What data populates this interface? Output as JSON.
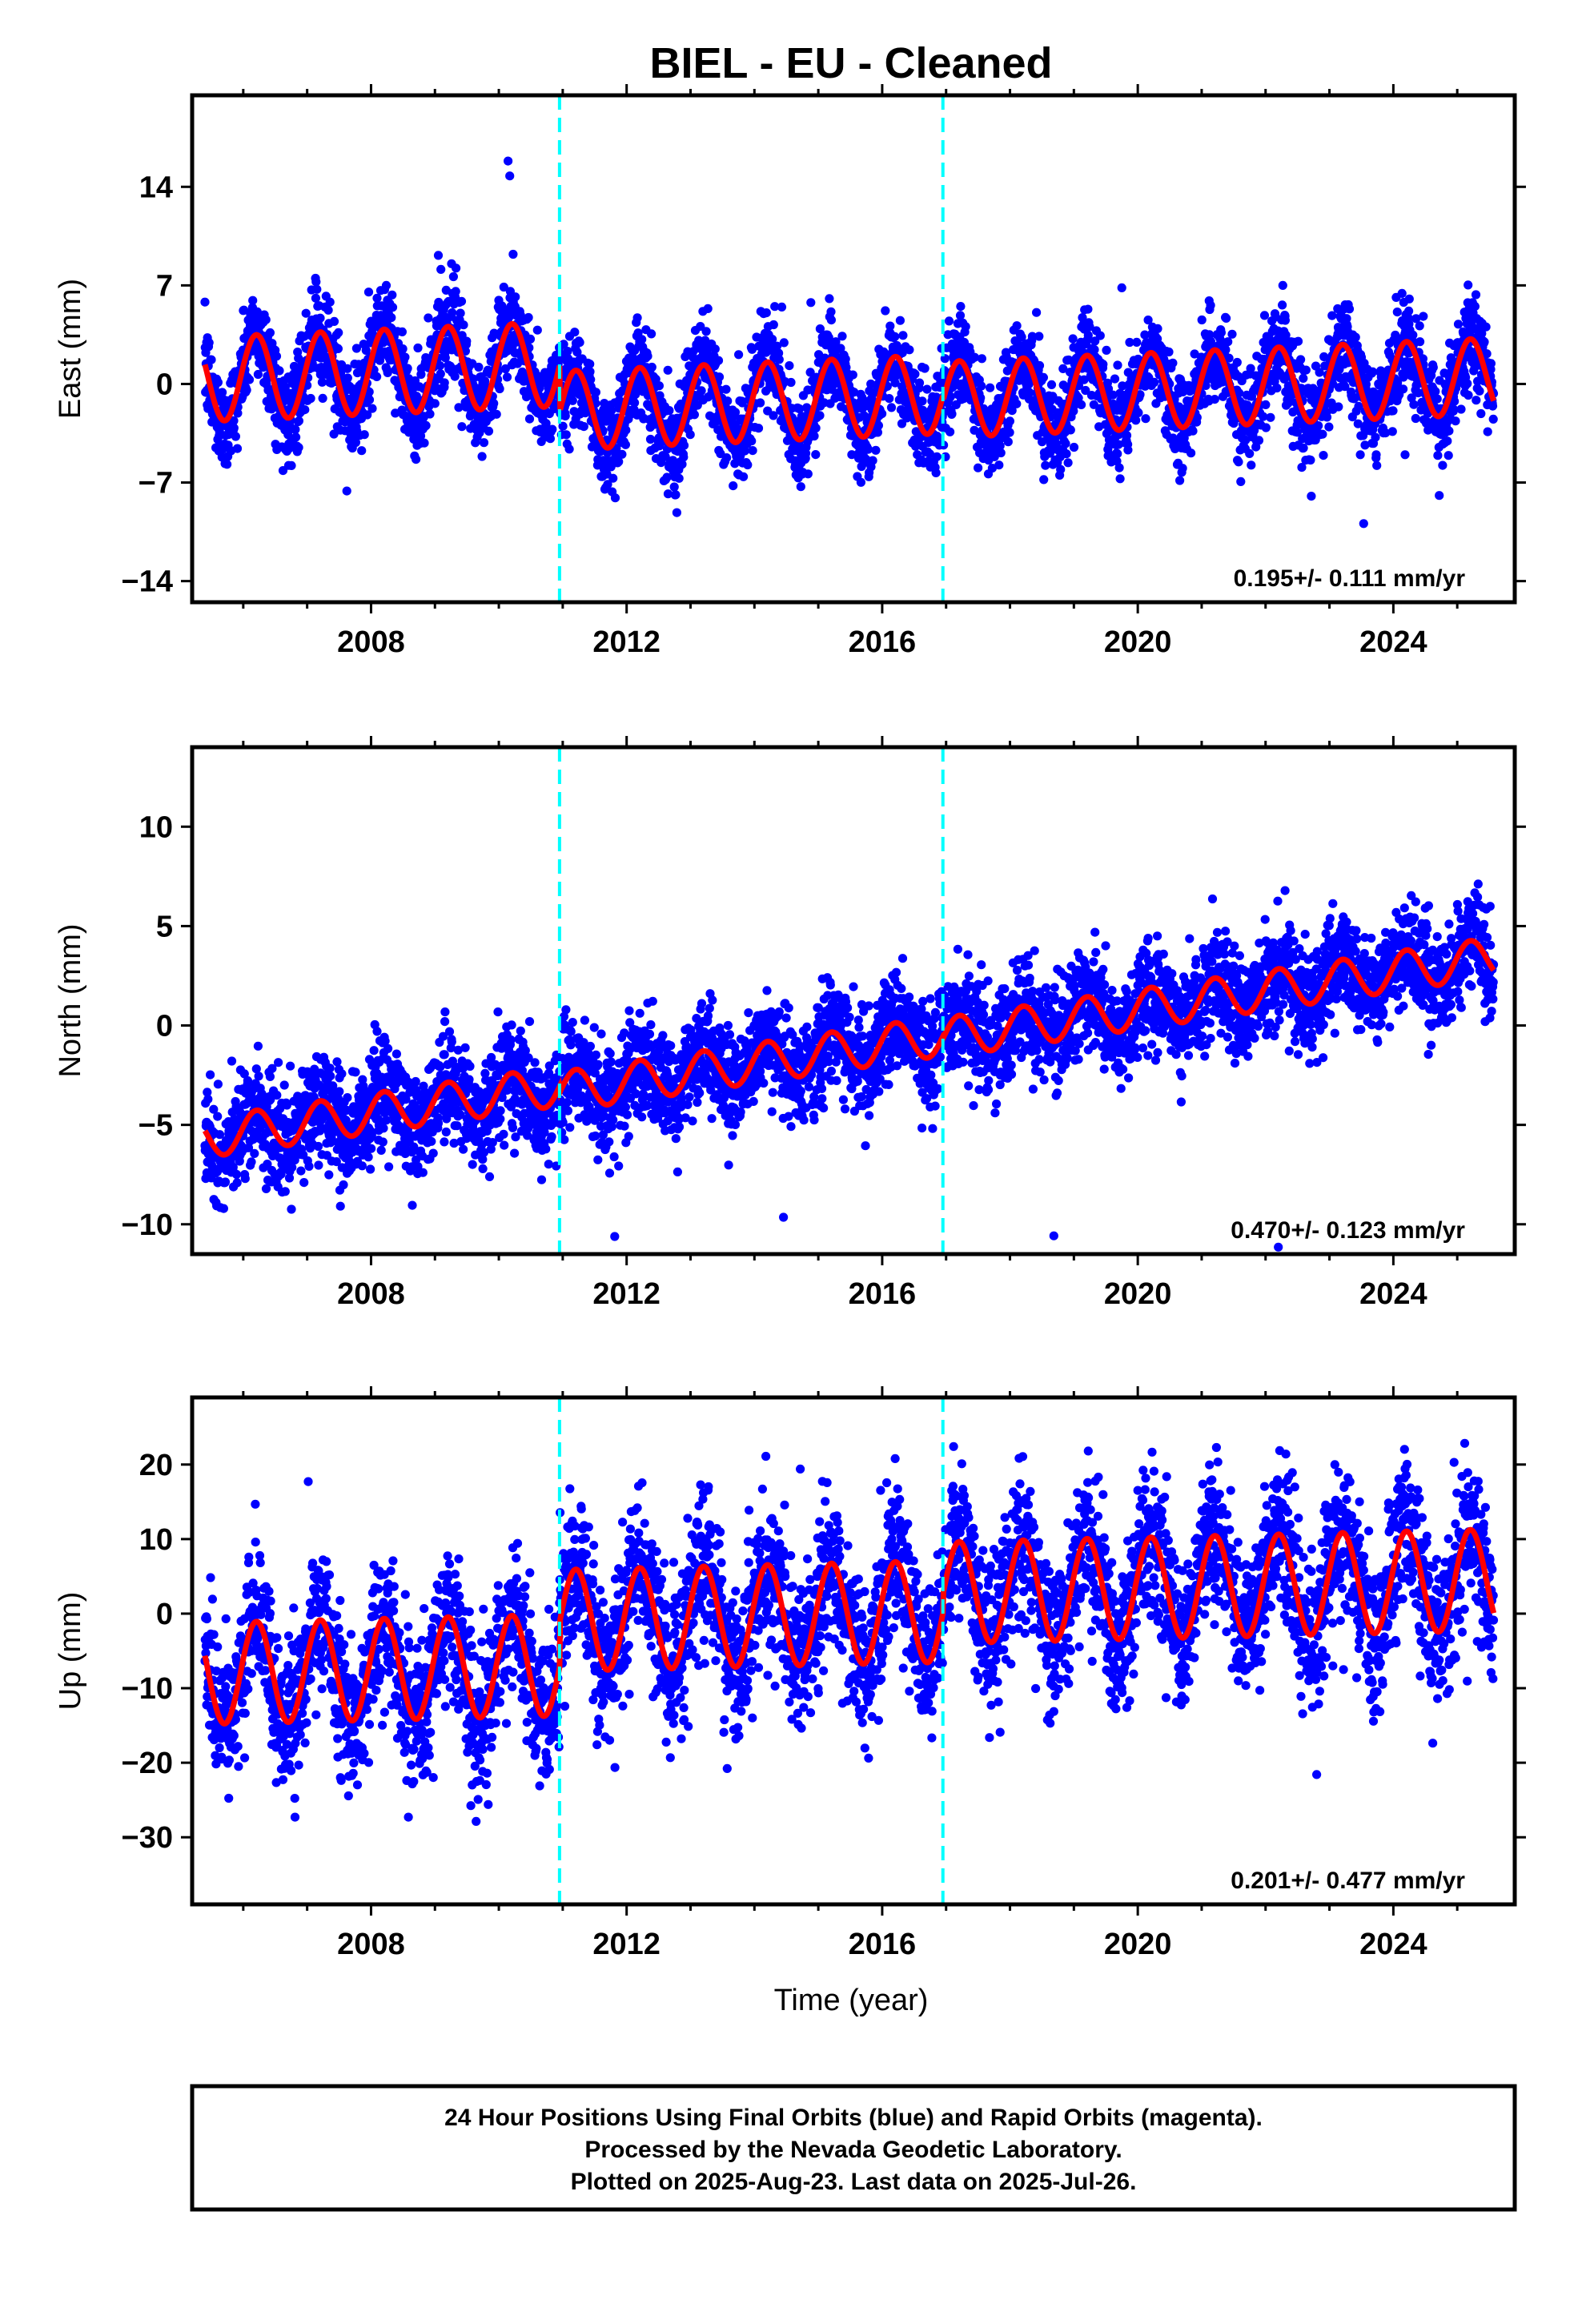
{
  "chart_data": {
    "type": "scatter",
    "title": "BIEL  - EU - Cleaned",
    "xlabel": "Time (year)",
    "xlim": [
      2005.2,
      2025.9
    ],
    "xticks": [
      2008,
      2012,
      2016,
      2020,
      2024
    ],
    "breaks": [
      2010.95,
      2016.95
    ],
    "series_colors": {
      "final_orbits": "#0000ff",
      "model_fit": "#ff0000",
      "breaks": "#00ffff"
    },
    "panels": [
      {
        "ylabel": "East (mm)",
        "ylim": [
          -15.5,
          20.5
        ],
        "yticks": [
          -14,
          -7,
          0,
          7,
          14
        ],
        "rate_label": "0.195+/- 0.111 mm/yr",
        "velocity": 0.195,
        "segments": [
          {
            "start": 2005.4,
            "end": 2010.95,
            "offset": 2.3,
            "amplitude": 3.0
          },
          {
            "start": 2010.95,
            "end": 2016.95,
            "offset": -1.0,
            "amplitude": 2.8
          },
          {
            "start": 2016.95,
            "end": 2025.57,
            "offset": -1.4,
            "amplitude": 2.7
          }
        ],
        "noise": 1.6
      },
      {
        "ylabel": "North (mm)",
        "ylim": [
          -11.5,
          14
        ],
        "yticks": [
          -10,
          -5,
          0,
          5,
          10
        ],
        "rate_label": "0.470+/- 0.123 mm/yr",
        "velocity": 0.47,
        "segments": [
          {
            "start": 2005.4,
            "end": 2010.95,
            "offset": -0.9,
            "amplitude": 1.0
          },
          {
            "start": 2010.95,
            "end": 2016.95,
            "offset": -1.2,
            "amplitude": 1.0
          },
          {
            "start": 2016.95,
            "end": 2025.57,
            "offset": -1.3,
            "amplitude": 1.0
          }
        ],
        "noise": 1.3
      },
      {
        "ylabel": "Up (mm)",
        "ylim": [
          -39,
          29
        ],
        "yticks": [
          -30,
          -20,
          -10,
          0,
          10,
          20
        ],
        "rate_label": "0.201+/- 0.477 mm/yr",
        "velocity": 0.201,
        "segments": [
          {
            "start": 2005.4,
            "end": 2010.95,
            "offset": -6.0,
            "amplitude": 6.8
          },
          {
            "start": 2010.95,
            "end": 2016.95,
            "offset": 0.0,
            "amplitude": 6.8
          },
          {
            "start": 2016.95,
            "end": 2025.57,
            "offset": 2.5,
            "amplitude": 6.8
          }
        ],
        "noise": 5.0
      }
    ],
    "footer": [
      "24 Hour Positions Using Final Orbits (blue) and Rapid Orbits (magenta).",
      "Processed by the Nevada Geodetic Laboratory.",
      "Plotted on 2025-Aug-23. Last data on 2025-Jul-26."
    ]
  }
}
